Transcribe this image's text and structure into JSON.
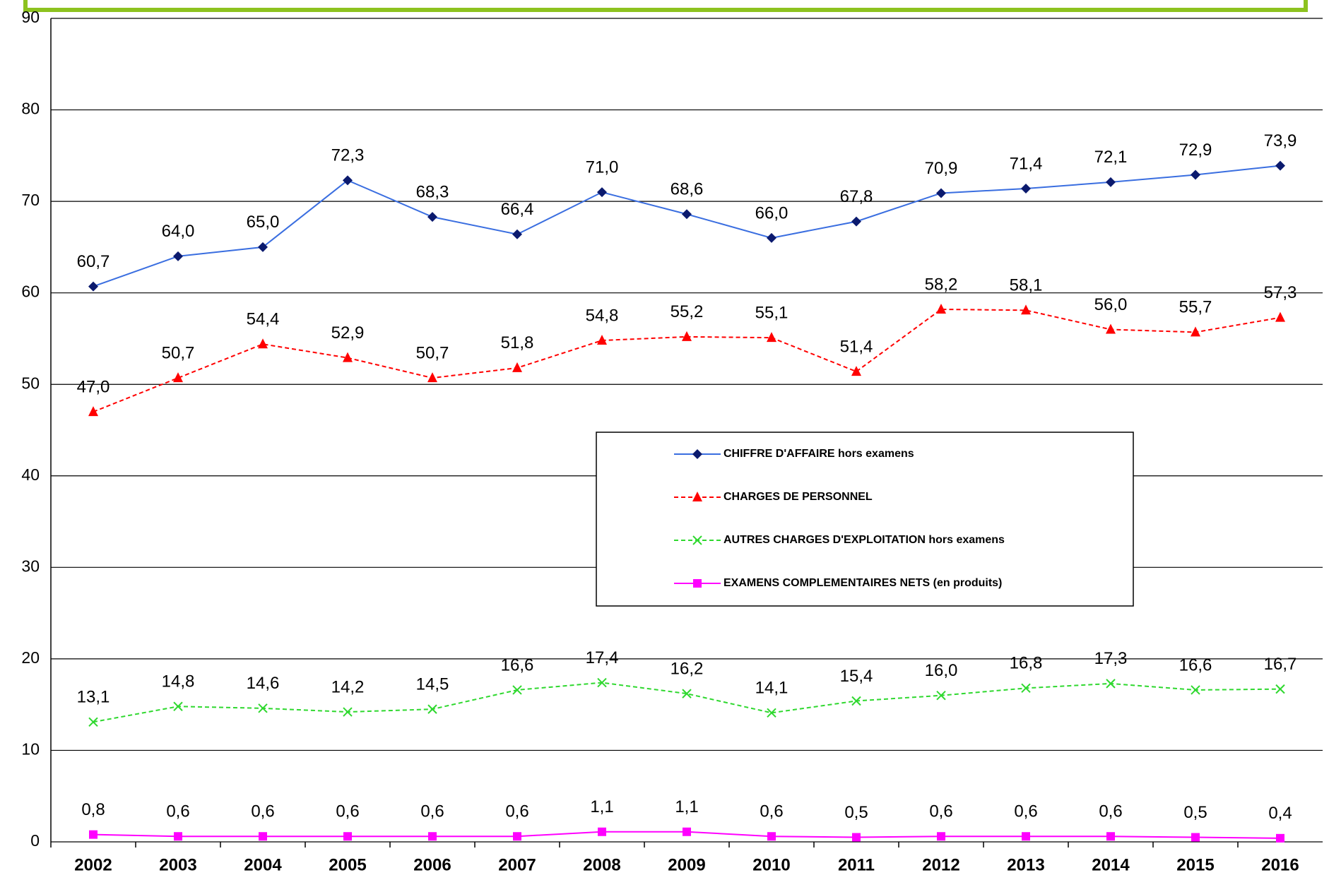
{
  "chart_data": {
    "type": "line",
    "categories": [
      "2002",
      "2003",
      "2004",
      "2005",
      "2006",
      "2007",
      "2008",
      "2009",
      "2010",
      "2011",
      "2012",
      "2013",
      "2014",
      "2015",
      "2016"
    ],
    "ylim": [
      0,
      90
    ],
    "yticks": [
      0,
      10,
      20,
      30,
      40,
      50,
      60,
      70,
      80,
      90
    ],
    "grid": true,
    "series": [
      {
        "name": "CHIFFRE D'AFFAIRE hors examens",
        "color": "#3a6ee0",
        "marker_color": "#0b1a6e",
        "marker": "diamond",
        "dash": false,
        "values": [
          60.7,
          64.0,
          65.0,
          72.3,
          68.3,
          66.4,
          71.0,
          68.6,
          66.0,
          67.8,
          70.9,
          71.4,
          72.1,
          72.9,
          73.9
        ],
        "value_labels": [
          "60,7",
          "64,0",
          "65,0",
          "72,3",
          "68,3",
          "66,4",
          "71,0",
          "68,6",
          "66,0",
          "67,8",
          "70,9",
          "71,4",
          "72,1",
          "72,9",
          "73,9"
        ]
      },
      {
        "name": "CHARGES DE PERSONNEL",
        "color": "#ff0000",
        "marker_color": "#ff0000",
        "marker": "triangle",
        "dash": true,
        "values": [
          47.0,
          50.7,
          54.4,
          52.9,
          50.7,
          51.8,
          54.8,
          55.2,
          55.1,
          51.4,
          58.2,
          58.1,
          56.0,
          55.7,
          57.3
        ],
        "value_labels": [
          "47,0",
          "50,7",
          "54,4",
          "52,9",
          "50,7",
          "51,8",
          "54,8",
          "55,2",
          "55,1",
          "51,4",
          "58,2",
          "58,1",
          "56,0",
          "55,7",
          "57,3"
        ]
      },
      {
        "name": "AUTRES CHARGES D'EXPLOITATION hors examens",
        "color": "#2fd82f",
        "marker_color": "#2fd82f",
        "marker": "x",
        "dash": true,
        "values": [
          13.1,
          14.8,
          14.6,
          14.2,
          14.5,
          16.6,
          17.4,
          16.2,
          14.1,
          15.4,
          16.0,
          16.8,
          17.3,
          16.6,
          16.7
        ],
        "value_labels": [
          "13,1",
          "14,8",
          "14,6",
          "14,2",
          "14,5",
          "16,6",
          "17,4",
          "16,2",
          "14,1",
          "15,4",
          "16,0",
          "16,8",
          "17,3",
          "16,6",
          "16,7"
        ]
      },
      {
        "name": "EXAMENS COMPLEMENTAIRES NETS (en produits)",
        "color": "#ff00ff",
        "marker_color": "#ff00ff",
        "marker": "square",
        "dash": false,
        "values": [
          0.8,
          0.6,
          0.6,
          0.6,
          0.6,
          0.6,
          1.1,
          1.1,
          0.6,
          0.5,
          0.6,
          0.6,
          0.6,
          0.5,
          0.4
        ],
        "value_labels": [
          "0,8",
          "0,6",
          "0,6",
          "0,6",
          "0,6",
          "0,6",
          "1,1",
          "1,1",
          "0,6",
          "0,5",
          "0,6",
          "0,6",
          "0,6",
          "0,5",
          "0,4"
        ]
      }
    ]
  }
}
